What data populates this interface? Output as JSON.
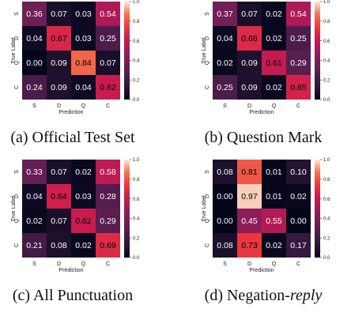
{
  "colorbar": {
    "min": 0.0,
    "max": 1.0,
    "tick_labels": [
      "0.0",
      "0.2",
      "0.4",
      "0.6",
      "0.8",
      "1.0"
    ],
    "tick_values": [
      0.0,
      0.2,
      0.4,
      0.6,
      0.8,
      1.0
    ],
    "colormap": "rocket"
  },
  "chart_data": [
    {
      "type": "heatmap",
      "caption": "(a) Official Test Set",
      "xlabel": "Prediction",
      "ylabel": "True Label",
      "x_categories": [
        "S",
        "D",
        "Q",
        "C"
      ],
      "y_categories": [
        "S",
        "D",
        "Q",
        "C"
      ],
      "values": [
        [
          0.36,
          0.07,
          0.03,
          0.54
        ],
        [
          0.04,
          0.67,
          0.03,
          0.25
        ],
        [
          0.0,
          0.09,
          0.84,
          0.07
        ],
        [
          0.24,
          0.09,
          0.04,
          0.62
        ]
      ],
      "labels": [
        [
          "0.36",
          "0.07",
          "0.03",
          "0.54"
        ],
        [
          "0.04",
          "0.67",
          "0.03",
          "0.25"
        ],
        [
          "0.00",
          "0.09",
          "0.84",
          "0.07"
        ],
        [
          "0.24",
          "0.09",
          "0.04",
          "0.62"
        ]
      ]
    },
    {
      "type": "heatmap",
      "caption": "(b) Question Mark",
      "xlabel": "Prediction",
      "ylabel": "True Label",
      "x_categories": [
        "S",
        "D",
        "Q",
        "C"
      ],
      "y_categories": [
        "S",
        "D",
        "Q",
        "C"
      ],
      "values": [
        [
          0.37,
          0.07,
          0.02,
          0.54
        ],
        [
          0.04,
          0.68,
          0.02,
          0.25
        ],
        [
          0.02,
          0.09,
          0.61,
          0.29
        ],
        [
          0.25,
          0.09,
          0.02,
          0.65
        ]
      ],
      "labels": [
        [
          "0.37",
          "0.07",
          "0.02",
          "0.54"
        ],
        [
          "0.04",
          "0.68",
          "0.02",
          "0.25"
        ],
        [
          "0.02",
          "0.09",
          "0.61",
          "0.29"
        ],
        [
          "0.25",
          "0.09",
          "0.02",
          "0.65"
        ]
      ]
    },
    {
      "type": "heatmap",
      "caption": "(c) All Punctuation",
      "xlabel": "Prediction",
      "ylabel": "True Label",
      "x_categories": [
        "S",
        "D",
        "Q",
        "C"
      ],
      "y_categories": [
        "S",
        "D",
        "Q",
        "C"
      ],
      "values": [
        [
          0.33,
          0.07,
          0.02,
          0.58
        ],
        [
          0.04,
          0.64,
          0.03,
          0.28
        ],
        [
          0.02,
          0.07,
          0.62,
          0.29
        ],
        [
          0.21,
          0.08,
          0.02,
          0.69
        ]
      ],
      "labels": [
        [
          "0.33",
          "0.07",
          "0.02",
          "0.58"
        ],
        [
          "0.04",
          "0.64",
          "0.03",
          "0.28"
        ],
        [
          "0.02",
          "0.07",
          "0.62",
          "0.29"
        ],
        [
          "0.21",
          "0.08",
          "0.02",
          "0.69"
        ]
      ]
    },
    {
      "type": "heatmap",
      "caption_plain": "(d) Negation-",
      "caption_italic": "reply",
      "xlabel": "Prediction",
      "ylabel": "True Label",
      "x_categories": [
        "S",
        "D",
        "Q",
        "C"
      ],
      "y_categories": [
        "S",
        "D",
        "Q",
        "C"
      ],
      "values": [
        [
          0.08,
          0.81,
          0.01,
          0.1
        ],
        [
          0.0,
          0.97,
          0.01,
          0.02
        ],
        [
          0.0,
          0.45,
          0.55,
          0.0
        ],
        [
          0.08,
          0.73,
          0.02,
          0.17
        ]
      ],
      "labels": [
        [
          "0.08",
          "0.81",
          "0.01",
          "0.10"
        ],
        [
          "0.00",
          "0.97",
          "0.01",
          "0.02"
        ],
        [
          "0.00",
          "0.45",
          "0.55",
          "0.00"
        ],
        [
          "0.08",
          "0.73",
          "0.02",
          "0.17"
        ]
      ]
    }
  ]
}
